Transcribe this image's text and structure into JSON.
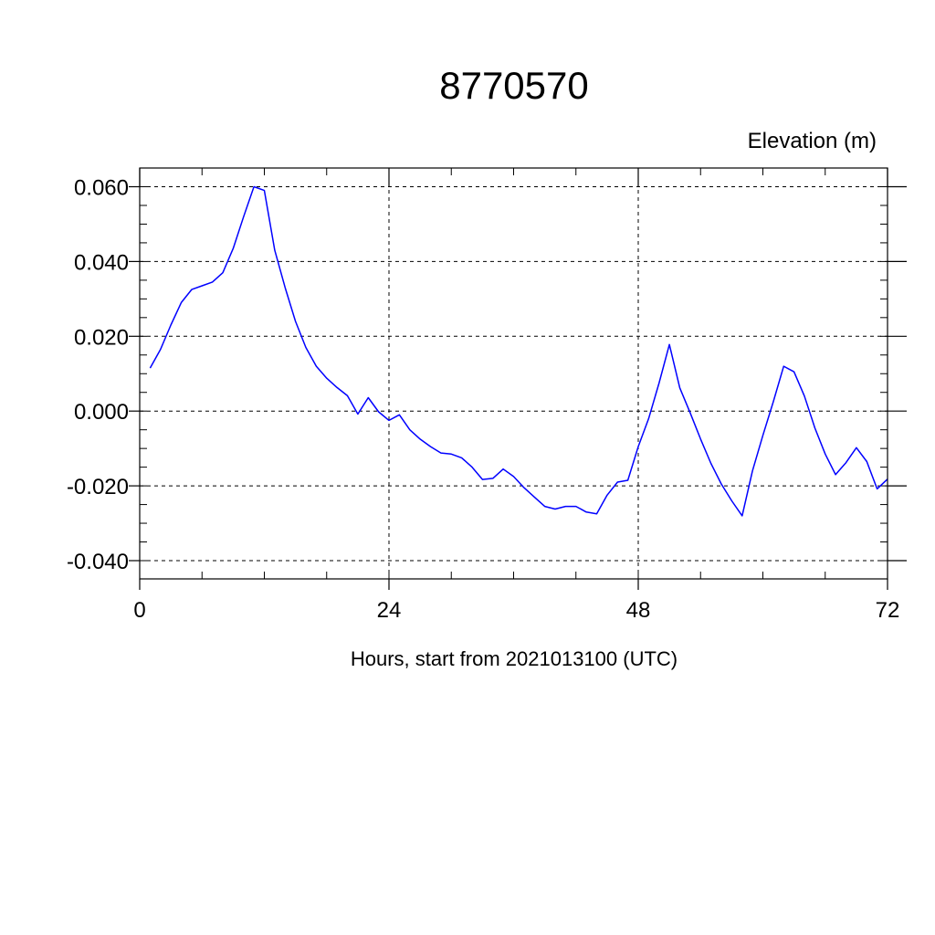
{
  "chart_data": {
    "type": "line",
    "title": "8770570",
    "subtitle": "Elevation (m)",
    "xlabel": "Hours, start from 2021013100 (UTC)",
    "ylabel": "",
    "xlim": [
      0,
      72
    ],
    "ylim": [
      -0.04,
      0.06
    ],
    "x_ticks": [
      0,
      24,
      48,
      72
    ],
    "x_tick_labels": [
      "0",
      "24",
      "48",
      "72"
    ],
    "y_ticks": [
      -0.04,
      -0.02,
      0.0,
      0.02,
      0.04,
      0.06
    ],
    "y_tick_labels": [
      "-0.040",
      "-0.020",
      "0.000",
      "0.020",
      "0.040",
      "0.060"
    ],
    "grid": true,
    "series_color": "#0000ff",
    "series": [
      {
        "x": [
          1,
          2,
          3,
          4,
          5,
          6,
          7,
          8,
          9,
          10,
          11,
          12,
          13,
          14,
          15,
          16,
          17,
          18,
          19,
          20,
          21,
          22,
          23,
          24,
          25,
          26,
          27,
          28,
          29,
          30,
          31,
          32,
          33,
          34,
          35,
          36,
          37,
          38,
          39,
          40,
          41,
          42,
          43,
          44,
          45,
          46,
          47,
          48,
          49,
          50,
          51,
          52,
          53,
          54,
          55,
          56,
          57,
          58,
          59,
          60,
          61,
          62,
          63,
          64,
          65,
          66,
          67,
          68,
          69,
          70,
          71,
          72
        ],
        "values": [
          0.0115,
          0.0165,
          0.023,
          0.029,
          0.0325,
          0.0335,
          0.0345,
          0.037,
          0.0435,
          0.052,
          0.06,
          0.059,
          0.043,
          0.033,
          0.024,
          0.017,
          0.012,
          0.0088,
          0.0063,
          0.0041,
          -0.0008,
          0.0036,
          -0.0002,
          -0.0025,
          -0.001,
          -0.005,
          -0.0075,
          -0.0095,
          -0.0112,
          -0.0115,
          -0.0125,
          -0.015,
          -0.0183,
          -0.018,
          -0.0155,
          -0.0175,
          -0.0205,
          -0.023,
          -0.0255,
          -0.0262,
          -0.0255,
          -0.0255,
          -0.027,
          -0.0275,
          -0.0225,
          -0.019,
          -0.0185,
          -0.0095,
          -0.002,
          0.0075,
          0.0178,
          0.0062,
          -0.0005,
          -0.0075,
          -0.014,
          -0.0195,
          -0.024,
          -0.028,
          -0.016,
          -0.0065,
          0.0025,
          0.012,
          0.0105,
          0.004,
          -0.0045,
          -0.0115,
          -0.017,
          -0.0138,
          -0.0098,
          -0.0135,
          -0.0208,
          -0.0182
        ]
      }
    ]
  }
}
